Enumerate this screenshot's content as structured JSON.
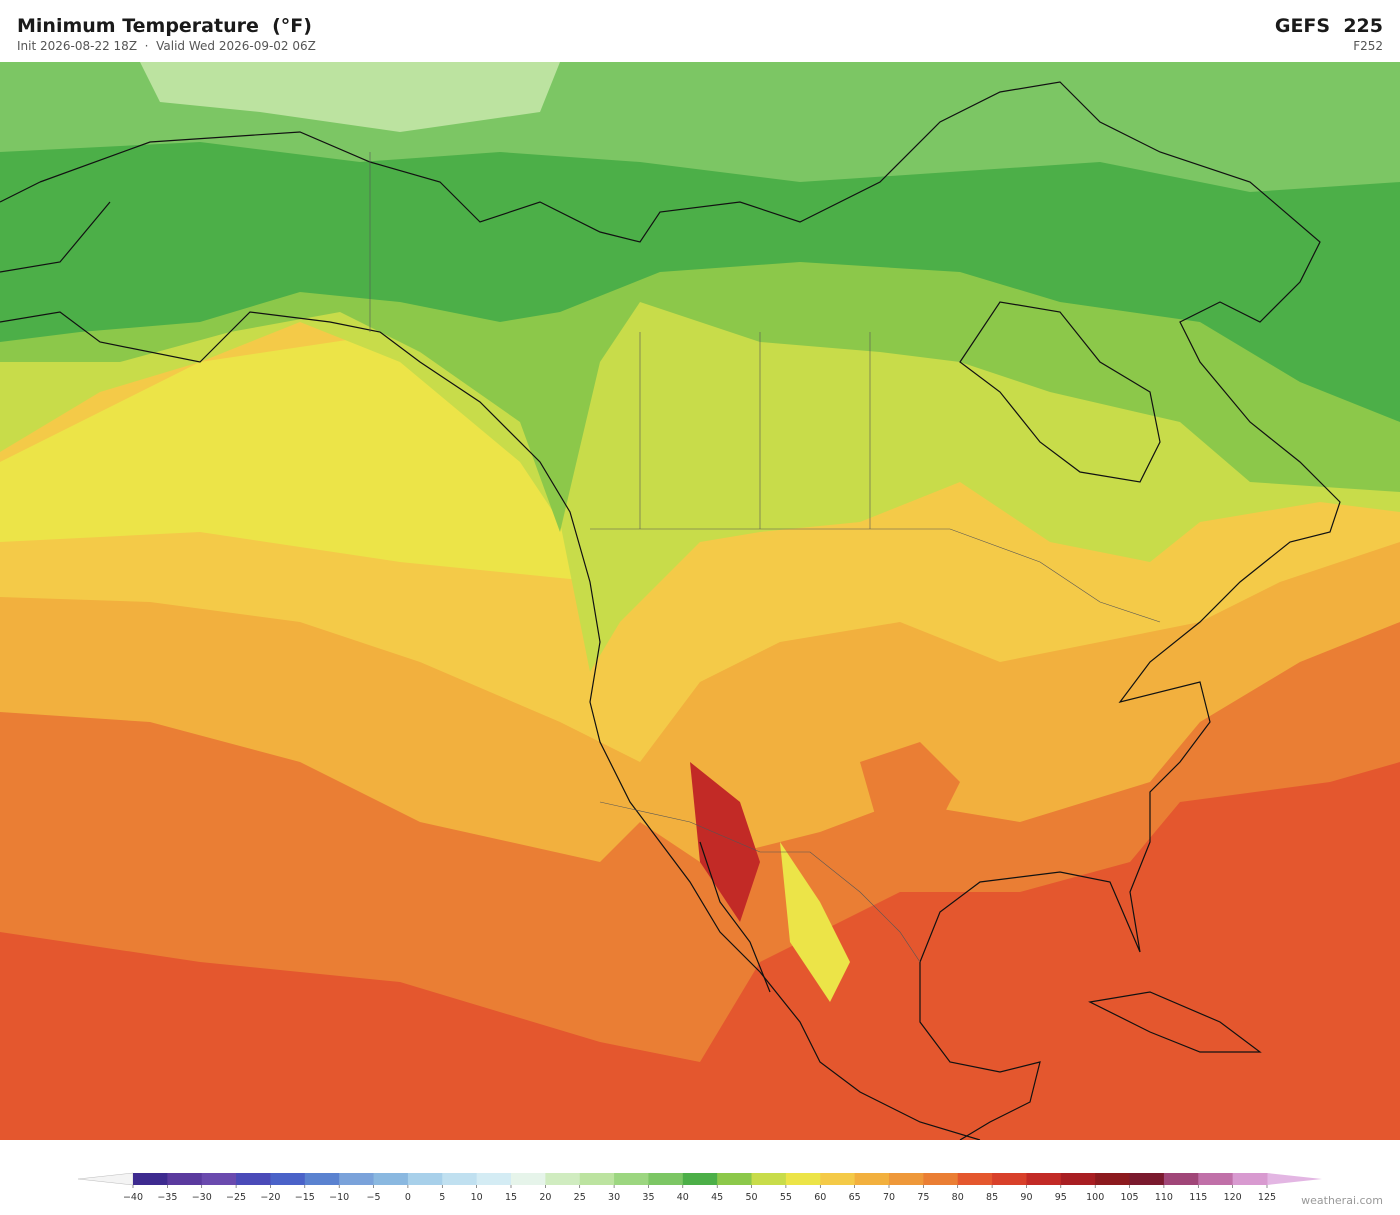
{
  "header": {
    "title": "Minimum Temperature  (°F)",
    "subtitle": "Init 2026-08-22 18Z  ·  Valid Wed 2026-09-02 06Z",
    "model": "GEFS  225",
    "forecast_hour": "F252"
  },
  "colorbar": {
    "ticks": [
      {
        "value": -40,
        "label": "−40"
      },
      {
        "value": -35,
        "label": "−35"
      },
      {
        "value": -30,
        "label": "−30"
      },
      {
        "value": -25,
        "label": "−25"
      },
      {
        "value": -20,
        "label": "−20"
      },
      {
        "value": -15,
        "label": "−15"
      },
      {
        "value": -10,
        "label": "−10"
      },
      {
        "value": -5,
        "label": "−5"
      },
      0,
      5,
      10,
      15,
      20,
      25,
      30,
      35,
      40,
      45,
      50,
      55,
      60,
      65,
      70,
      75,
      80,
      85,
      90,
      95,
      100,
      105,
      110,
      115,
      120,
      125
    ],
    "colors": [
      "#3d2a8f",
      "#5a3a9e",
      "#6a4aae",
      "#4a4ab8",
      "#4a62c8",
      "#5a82d0",
      "#7aa2da",
      "#8ab8e0",
      "#a8d0ea",
      "#c0e0f0",
      "#d4ecf4",
      "#e6f4ea",
      "#d0ecc0",
      "#bce3a0",
      "#9cd680",
      "#7cc664",
      "#4caf48",
      "#8cc84a",
      "#c8dc4a",
      "#ece448",
      "#f4ca48",
      "#f2b03e",
      "#ee983a",
      "#ea7e34",
      "#e4572e",
      "#d8402a",
      "#c22a26",
      "#a81e22",
      "#8c1a1e",
      "#7a1a2e",
      "#a04678",
      "#c070a8",
      "#d89ad0"
    ],
    "under_color": "#f4f4f4",
    "over_color": "#e3b6e3"
  },
  "watermark": "weatherai.com"
}
